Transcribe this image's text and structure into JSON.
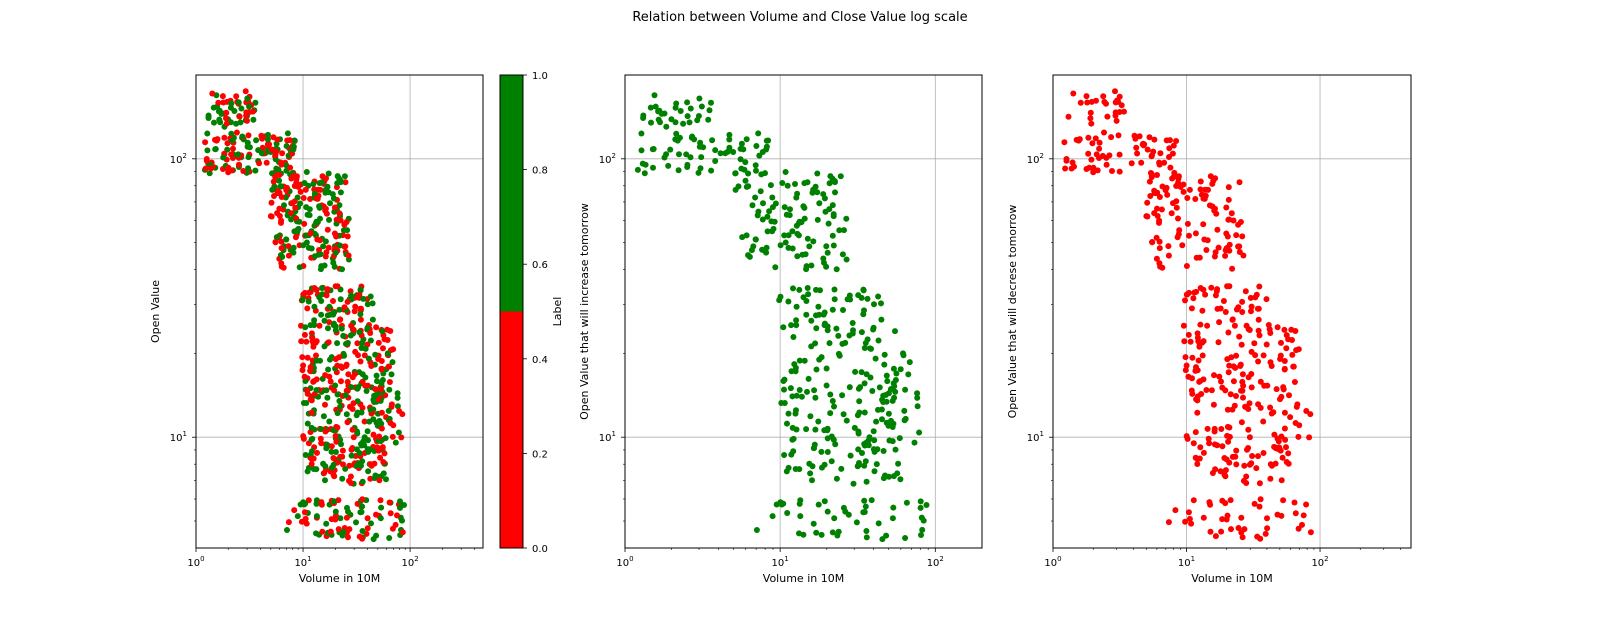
{
  "page_title": "Relation between Volume and Close Value log scale",
  "chart_data": [
    {
      "type": "scatter",
      "title": "",
      "xlabel": "Volume in 10M",
      "ylabel": "Open Value",
      "xscale": "log",
      "yscale": "log",
      "xlim": [
        1,
        480
      ],
      "ylim": [
        4,
        200
      ],
      "x_ticks": [
        1,
        10,
        100
      ],
      "y_ticks": [
        10,
        100
      ],
      "grid": true,
      "color_by": "Label",
      "series": [
        {
          "label_value": 0,
          "color": "#ff0000"
        },
        {
          "label_value": 1,
          "color": "#008000"
        }
      ]
    },
    {
      "type": "scatter",
      "title": "",
      "xlabel": "Volume in 10M",
      "ylabel": "Open Value that will increase tomorrow",
      "xscale": "log",
      "yscale": "log",
      "xlim": [
        1,
        200
      ],
      "ylim": [
        4,
        200
      ],
      "x_ticks": [
        1,
        10,
        100
      ],
      "y_ticks": [
        10,
        100
      ],
      "grid": true,
      "series": [
        {
          "label_value": 1,
          "color": "#008000"
        }
      ]
    },
    {
      "type": "scatter",
      "title": "",
      "xlabel": "Volume in 10M",
      "ylabel": "Open Value that will decrese tomorrow",
      "xscale": "log",
      "yscale": "log",
      "xlim": [
        1,
        480
      ],
      "ylim": [
        4,
        200
      ],
      "x_ticks": [
        1,
        10,
        100
      ],
      "y_ticks": [
        10,
        100
      ],
      "grid": true,
      "series": [
        {
          "label_value": 0,
          "color": "#ff0000"
        }
      ]
    }
  ],
  "colorbar": {
    "label": "Label",
    "range": [
      0,
      1
    ],
    "ticks": [
      "0.0",
      "0.2",
      "0.4",
      "0.6",
      "0.8",
      "1.0"
    ],
    "colors": [
      "#ff0000",
      "#008000"
    ]
  },
  "clusters": [
    {
      "v": [
        1.3,
        3.6
      ],
      "o": [
        130,
        175
      ],
      "n": 55
    },
    {
      "v": [
        1.2,
        8.5
      ],
      "o": [
        88,
        125
      ],
      "n": 130
    },
    {
      "v": [
        5.0,
        25
      ],
      "o": [
        62,
        90
      ],
      "n": 110
    },
    {
      "v": [
        5.5,
        28
      ],
      "o": [
        40,
        62
      ],
      "n": 110
    },
    {
      "v": [
        9.5,
        45
      ],
      "o": [
        25,
        35
      ],
      "n": 90
    },
    {
      "v": [
        9.5,
        70
      ],
      "o": [
        15,
        25
      ],
      "n": 150
    },
    {
      "v": [
        10,
        85
      ],
      "o": [
        9.5,
        15
      ],
      "n": 150
    },
    {
      "v": [
        10,
        60
      ],
      "o": [
        6.8,
        9.5
      ],
      "n": 100
    },
    {
      "v": [
        7,
        90
      ],
      "o": [
        4.3,
        6
      ],
      "n": 90
    }
  ]
}
